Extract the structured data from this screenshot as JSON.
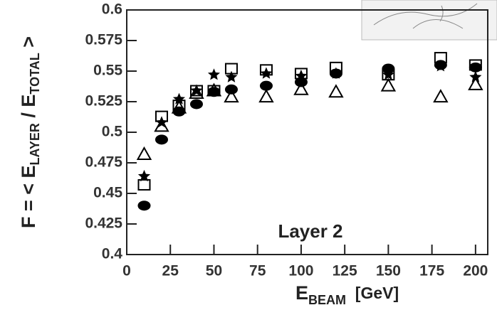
{
  "chart_data": {
    "type": "scatter",
    "annotation": "Layer 2",
    "ylabel_parts": [
      "F = < E",
      "LAYER",
      " / E",
      "TOTAL",
      " >"
    ],
    "xlabel_parts": [
      "E",
      "BEAM",
      "  [GeV]"
    ],
    "x": [
      10,
      20,
      30,
      40,
      50,
      60,
      80,
      100,
      120,
      150,
      180,
      200
    ],
    "series": [
      {
        "marker": "circle",
        "color": "#000000",
        "values": [
          0.44,
          0.494,
          0.517,
          0.523,
          0.533,
          0.535,
          0.538,
          0.541,
          0.548,
          0.552,
          0.555,
          0.553
        ]
      },
      {
        "marker": "square",
        "color": "#000000",
        "values": [
          0.457,
          0.513,
          0.522,
          0.534,
          0.534,
          0.552,
          0.551,
          0.548,
          0.553,
          0.547,
          0.561,
          0.555
        ]
      },
      {
        "marker": "star",
        "color": "#000000",
        "values": [
          0.464,
          0.508,
          0.527,
          0.534,
          0.547,
          0.545,
          0.548,
          0.546,
          0.548,
          0.547,
          0.554,
          0.545
        ]
      },
      {
        "marker": "triangle",
        "color": "#000000",
        "values": [
          0.482,
          0.505,
          0.52,
          0.532,
          0.534,
          0.529,
          0.529,
          0.535,
          0.533,
          0.538,
          0.529,
          0.539
        ]
      }
    ],
    "xlim": [
      0,
      207
    ],
    "xticks": [
      0,
      25,
      50,
      75,
      100,
      125,
      150,
      175,
      200
    ],
    "ylim": [
      0.4,
      0.6
    ],
    "yticks": [
      0.4,
      0.425,
      0.45,
      0.475,
      0.5,
      0.525,
      0.55,
      0.575,
      0.6
    ]
  }
}
